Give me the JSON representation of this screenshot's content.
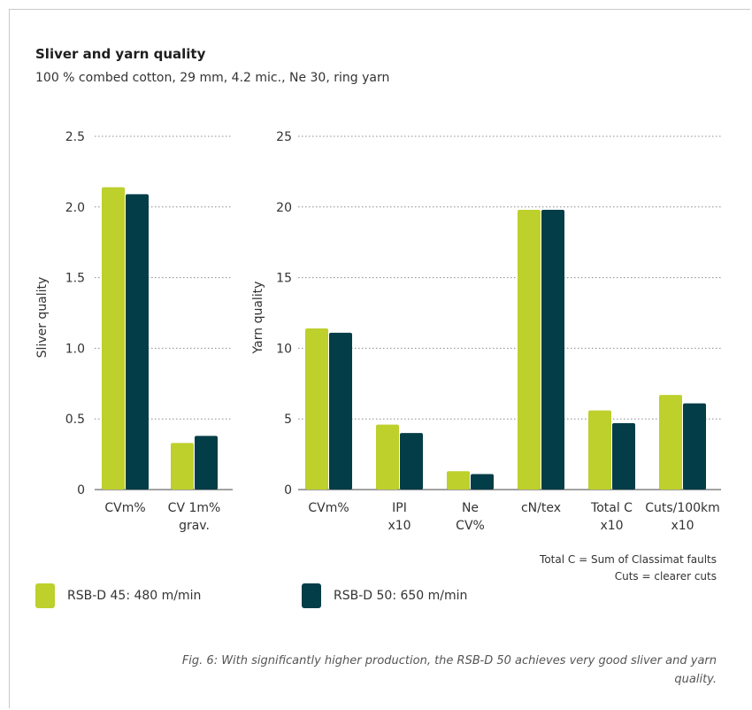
{
  "chart_data": [
    {
      "type": "bar",
      "ylabel": "Sliver quality",
      "ylim": [
        0,
        2.5
      ],
      "yticks": [
        "0",
        "0.5",
        "1.0",
        "1.5",
        "2.0",
        "2.5"
      ],
      "categories": [
        [
          "CVm%"
        ],
        [
          "CV 1m%",
          "grav."
        ]
      ],
      "series": [
        {
          "name": "RSB-D 45: 480 m/min",
          "values": [
            2.14,
            0.33
          ]
        },
        {
          "name": "RSB-D 50: 650 m/min",
          "values": [
            2.09,
            0.38
          ]
        }
      ]
    },
    {
      "type": "bar",
      "ylabel": "Yarn quality",
      "ylim": [
        0,
        25
      ],
      "yticks": [
        "0",
        "5",
        "10",
        "15",
        "20",
        "25"
      ],
      "categories": [
        [
          "CVm%"
        ],
        [
          "IPI",
          "x10"
        ],
        [
          "Ne",
          "CV%"
        ],
        [
          "cN/tex"
        ],
        [
          "Total C",
          "x10"
        ],
        [
          "Cuts/100km",
          "x10"
        ]
      ],
      "series": [
        {
          "name": "RSB-D 45: 480 m/min",
          "values": [
            11.4,
            4.6,
            1.3,
            19.8,
            5.6,
            6.7
          ]
        },
        {
          "name": "RSB-D 50: 650 m/min",
          "values": [
            11.1,
            4.0,
            1.1,
            19.8,
            4.7,
            6.1
          ]
        }
      ]
    }
  ],
  "header": {
    "title": "Sliver and yarn quality",
    "subtitle": "100 % combed cotton, 29 mm, 4.2 mic., Ne 30, ring yarn"
  },
  "notes": {
    "line1": "Total C = Sum of Classimat faults",
    "line2": "Cuts = clearer cuts"
  },
  "legend": {
    "item1": "RSB-D 45: 480 m/min",
    "item2": "RSB-D 50: 650 m/min"
  },
  "colors": {
    "series1": "#bdd02c",
    "series2": "#033d47",
    "grid": "#8c8c8c"
  },
  "caption": "Fig. 6: With significantly higher production, the RSB-D 50 achieves very good sliver and yarn quality."
}
